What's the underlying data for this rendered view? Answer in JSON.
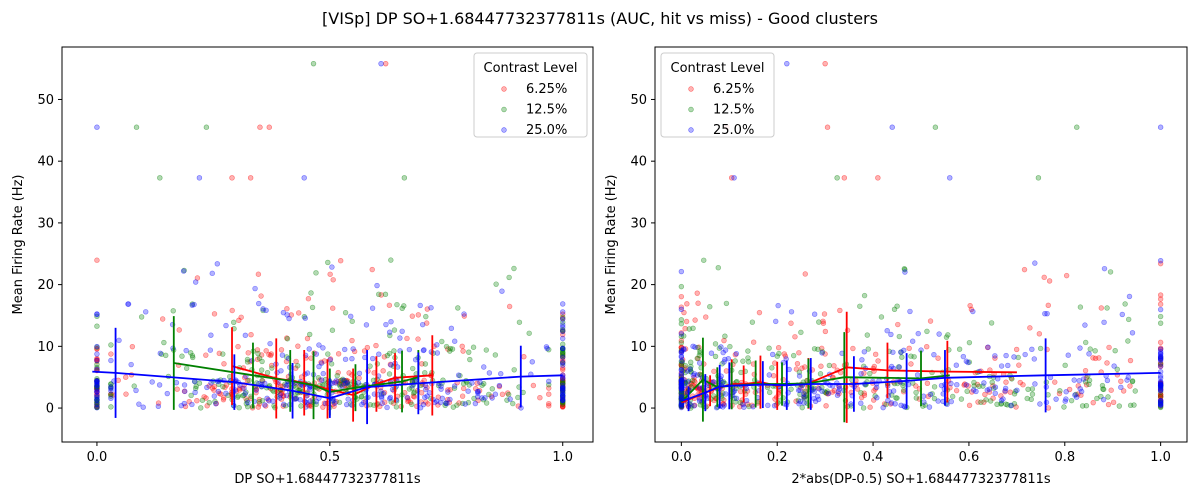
{
  "figure": {
    "suptitle": "[VISp] DP SO+1.68447732377811s (AUC, hit vs miss) - Good clusters"
  },
  "chart_data": [
    {
      "type": "scatter",
      "xlabel": "DP SO+1.68447732377811s",
      "ylabel": "Mean Firing Rate (Hz)",
      "xlim": [
        -0.075,
        1.065
      ],
      "ylim": [
        -5.5,
        58.5
      ],
      "xticks": [
        0.0,
        0.5,
        1.0
      ],
      "xtick_labels": [
        "0.0",
        "0.5",
        "1.0"
      ],
      "yticks": [
        0,
        10,
        20,
        30,
        40,
        50
      ],
      "ytick_labels": [
        "0",
        "10",
        "20",
        "30",
        "40",
        "50"
      ],
      "grid": false,
      "legend": {
        "title": "Contrast Level",
        "position": "top-right"
      },
      "series": [
        {
          "name": "6.25%",
          "color": "#ff0000",
          "outliers": [
            [
              0.29,
              37.3
            ],
            [
              0.33,
              37.3
            ],
            [
              0.35,
              45.5
            ],
            [
              0.37,
              45.5
            ],
            [
              0.62,
              55.8
            ]
          ],
          "binned": {
            "x": [
              0.29,
              0.385,
              0.445,
              0.495,
              0.55,
              0.6,
              0.64,
              0.72
            ],
            "mean": [
              6.8,
              4.8,
              4.1,
              3.1,
              2.1,
              3.9,
              4.9,
              5.3
            ],
            "err": [
              6.3,
              6.5,
              5.3,
              4.8,
              4.3,
              4.5,
              4.0,
              6.5
            ]
          }
        },
        {
          "name": "12.5%",
          "color": "#008000",
          "outliers": [
            [
              0.085,
              45.5
            ],
            [
              0.135,
              37.3
            ],
            [
              0.235,
              45.5
            ],
            [
              0.465,
              55.8
            ],
            [
              0.66,
              37.3
            ]
          ],
          "binned": {
            "x": [
              0.165,
              0.335,
              0.415,
              0.465,
              0.5,
              0.555,
              0.655,
              0.69
            ],
            "mean": [
              7.3,
              5.3,
              4.4,
              3.7,
              2.6,
              3.3,
              4.3,
              5.0
            ],
            "err": [
              7.6,
              5.3,
              5.0,
              5.5,
              3.8,
              3.8,
              5.0,
              4.4
            ]
          }
        },
        {
          "name": "25.0%",
          "color": "#0000ff",
          "outliers": [
            [
              0.0,
              45.5
            ],
            [
              0.22,
              37.3
            ],
            [
              0.445,
              37.3
            ],
            [
              0.61,
              55.8
            ]
          ],
          "binned": {
            "x": [
              -0.01,
              0.04,
              0.295,
              0.42,
              0.5,
              0.58,
              0.69,
              0.91,
              1.0
            ],
            "mean": [
              5.9,
              5.7,
              4.2,
              2.8,
              1.6,
              3.4,
              4.0,
              5.1,
              5.3
            ],
            "err": [
              0.0,
              7.3,
              4.5,
              4.5,
              3.2,
              6.0,
              5.0,
              5.0,
              0.0
            ]
          }
        }
      ]
    },
    {
      "type": "scatter",
      "xlabel": "2*abs(DP-0.5) SO+1.68447732377811s",
      "ylabel": "Mean Firing Rate (Hz)",
      "xlim": [
        -0.055,
        1.055
      ],
      "ylim": [
        -5.5,
        58.5
      ],
      "xticks": [
        0.0,
        0.2,
        0.4,
        0.6,
        0.8,
        1.0
      ],
      "xtick_labels": [
        "0.0",
        "0.2",
        "0.4",
        "0.6",
        "0.8",
        "1.0"
      ],
      "yticks": [
        0,
        10,
        20,
        30,
        40,
        50
      ],
      "ytick_labels": [
        "0",
        "10",
        "20",
        "30",
        "40",
        "50"
      ],
      "grid": false,
      "legend": {
        "title": "Contrast Level",
        "position": "top-left"
      },
      "series": [
        {
          "name": "6.25%",
          "color": "#ff0000",
          "outliers": [
            [
              0.095,
              45.5
            ],
            [
              0.105,
              37.3
            ],
            [
              0.3,
              55.8
            ],
            [
              0.305,
              45.5
            ],
            [
              0.34,
              37.3
            ],
            [
              0.41,
              37.3
            ]
          ],
          "binned": {
            "x": [
              0.0,
              0.06,
              0.105,
              0.13,
              0.165,
              0.2,
              0.265,
              0.345,
              0.43,
              0.555,
              0.7
            ],
            "mean": [
              0.9,
              2.8,
              3.9,
              3.9,
              4.2,
              3.6,
              4.0,
              6.6,
              6.1,
              5.9,
              5.8
            ],
            "err": [
              0.0,
              2.5,
              4.0,
              3.0,
              4.3,
              3.9,
              4.1,
              9.0,
              4.5,
              5.0,
              0.0
            ]
          }
        },
        {
          "name": "12.5%",
          "color": "#008000",
          "outliers": [
            [
              0.325,
              37.3
            ],
            [
              0.53,
              45.5
            ],
            [
              0.745,
              37.3
            ],
            [
              0.825,
              45.5
            ]
          ],
          "binned": {
            "x": [
              0.0,
              0.045,
              0.075,
              0.105,
              0.155,
              0.21,
              0.265,
              0.34,
              0.5,
              0.56
            ],
            "mean": [
              1.0,
              4.6,
              3.4,
              3.6,
              3.9,
              3.9,
              4.0,
              5.0,
              4.8,
              5.3
            ],
            "err": [
              0.0,
              6.8,
              3.2,
              3.8,
              3.8,
              3.5,
              4.0,
              7.3,
              4.5,
              0.0
            ]
          }
        },
        {
          "name": "25.0%",
          "color": "#0000ff",
          "outliers": [
            [
              0.11,
              37.3
            ],
            [
              0.22,
              55.8
            ],
            [
              0.44,
              45.5
            ],
            [
              0.56,
              37.3
            ],
            [
              1.0,
              45.5
            ]
          ],
          "binned": {
            "x": [
              0.0,
              0.015,
              0.05,
              0.08,
              0.1,
              0.17,
              0.22,
              0.27,
              0.36,
              0.47,
              0.55,
              0.76,
              1.0
            ],
            "mean": [
              1.2,
              1.5,
              2.5,
              3.5,
              3.6,
              3.8,
              3.7,
              3.9,
              3.9,
              4.4,
              4.9,
              5.3,
              5.7
            ],
            "err": [
              0.0,
              2.0,
              3.0,
              3.5,
              3.8,
              3.8,
              4.0,
              4.2,
              4.5,
              4.5,
              4.5,
              6.0,
              0.0
            ]
          }
        }
      ]
    }
  ]
}
